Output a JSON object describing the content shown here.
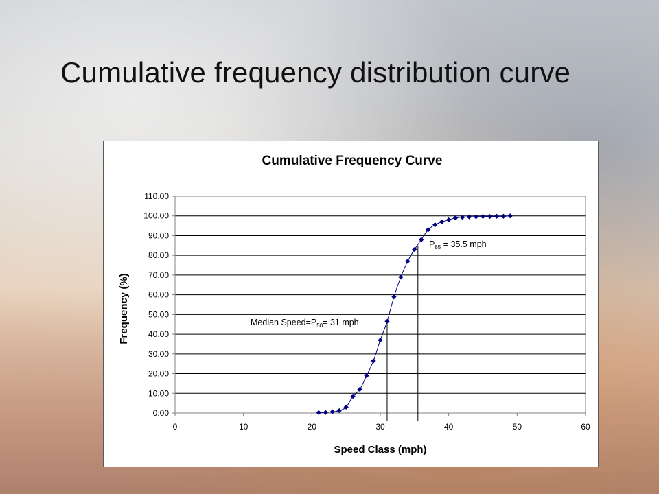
{
  "slide": {
    "title": "Cumulative frequency distribution curve"
  },
  "chart_data": {
    "type": "line",
    "title": "Cumulative Frequency Curve",
    "xlabel": "Speed Class (mph)",
    "ylabel": "Frequency (%)",
    "xlim": [
      0,
      60
    ],
    "ylim": [
      0,
      110
    ],
    "x_ticks": [
      0,
      10,
      20,
      30,
      40,
      50,
      60
    ],
    "y_ticks": [
      0,
      10,
      20,
      30,
      40,
      50,
      60,
      70,
      80,
      90,
      100,
      110
    ],
    "y_tick_format": "fixed2",
    "grid": "horizontal",
    "series": [
      {
        "marker": "diamond",
        "color": "#000080",
        "x": [
          21,
          22,
          23,
          24,
          25,
          26,
          27,
          28,
          29,
          30,
          31,
          32,
          33,
          34,
          35,
          36,
          37,
          38,
          39,
          40,
          41,
          42,
          43,
          44,
          45,
          46,
          47,
          48,
          49
        ],
        "y": [
          0.2,
          0.3,
          0.6,
          1.2,
          3.0,
          8.5,
          12.0,
          19.0,
          26.5,
          37.0,
          46.5,
          59.0,
          69.0,
          77.0,
          83.0,
          88.0,
          93.0,
          95.5,
          97.0,
          98.0,
          99.0,
          99.3,
          99.5,
          99.6,
          99.7,
          99.7,
          99.8,
          99.8,
          100.0
        ]
      }
    ],
    "annotations": [
      {
        "id": "p50",
        "text_pre": "Median Speed=P",
        "sub": "50",
        "text_post": "= 31 mph",
        "x": 31,
        "y": 47
      },
      {
        "id": "p85",
        "text_pre": "P",
        "sub": "85",
        "text_post": " = 35.5 mph",
        "x": 35.5,
        "y": 85
      }
    ]
  }
}
